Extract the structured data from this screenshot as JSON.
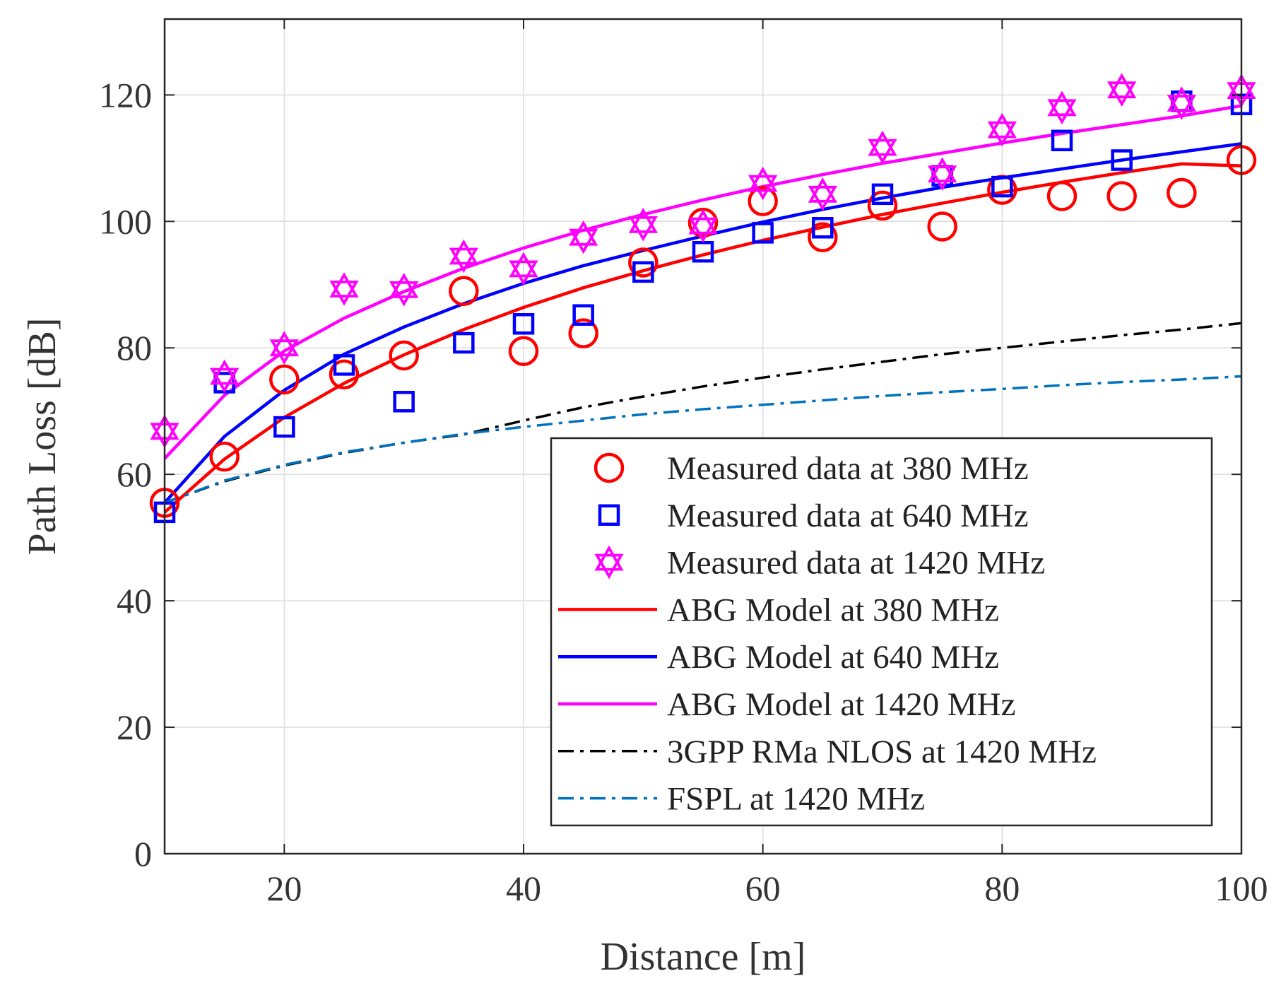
{
  "chart_data": {
    "type": "line",
    "title": "",
    "xlabel": "Distance [m]",
    "ylabel": "Path Loss [dB]",
    "xlim": [
      10,
      100
    ],
    "ylim": [
      0,
      132
    ],
    "xticks": [
      20,
      40,
      60,
      80,
      100
    ],
    "yticks": [
      0,
      20,
      40,
      60,
      80,
      100,
      120
    ],
    "grid": true,
    "legend_position": "bottom-right",
    "series": [
      {
        "name": "Measured data at 380 MHz",
        "kind": "marker",
        "marker": "circle",
        "color": "#ff0000",
        "x": [
          10,
          15,
          20,
          25,
          30,
          35,
          40,
          45,
          50,
          55,
          60,
          65,
          70,
          75,
          80,
          85,
          90,
          95,
          100
        ],
        "y": [
          55.5,
          62.8,
          75.0,
          75.8,
          78.8,
          89.0,
          79.5,
          82.3,
          93.5,
          99.8,
          103.2,
          97.5,
          102.5,
          99.2,
          105.0,
          104.0,
          104.0,
          104.5,
          109.7
        ]
      },
      {
        "name": "Measured data at 640 MHz",
        "kind": "marker",
        "marker": "square",
        "color": "#0000ff",
        "x": [
          10,
          15,
          20,
          25,
          30,
          35,
          40,
          45,
          50,
          55,
          60,
          65,
          70,
          75,
          80,
          85,
          90,
          95,
          100
        ],
        "y": [
          54.0,
          74.5,
          67.5,
          77.3,
          71.5,
          80.8,
          83.8,
          85.2,
          92.0,
          95.2,
          98.2,
          99.0,
          104.3,
          107.2,
          105.5,
          112.8,
          109.7,
          119.0,
          118.5
        ]
      },
      {
        "name": "Measured data at 1420 MHz",
        "kind": "marker",
        "marker": "hexagram",
        "color": "#ff00ff",
        "x": [
          10,
          15,
          20,
          25,
          30,
          35,
          40,
          45,
          50,
          55,
          60,
          65,
          70,
          75,
          80,
          85,
          90,
          95,
          100
        ],
        "y": [
          66.8,
          75.5,
          80.0,
          89.3,
          89.2,
          94.5,
          92.5,
          97.5,
          99.5,
          99.3,
          106.0,
          104.3,
          111.7,
          107.5,
          114.5,
          118.0,
          120.8,
          118.7,
          120.7
        ]
      },
      {
        "name": "ABG Model at 380 MHz",
        "kind": "line",
        "style": "solid",
        "color": "#ff0000",
        "x": [
          10,
          15,
          20,
          25,
          30,
          35,
          40,
          45,
          50,
          55,
          60,
          65,
          70,
          75,
          80,
          85,
          90,
          95,
          100
        ],
        "y": [
          54.0,
          62.4,
          69.0,
          74.4,
          78.9,
          82.9,
          86.4,
          89.5,
          92.2,
          94.7,
          97.0,
          99.1,
          101.1,
          102.9,
          104.6,
          106.2,
          107.7,
          109.1,
          108.8
        ]
      },
      {
        "name": "ABG Model at 640 MHz",
        "kind": "line",
        "style": "solid",
        "color": "#0000ff",
        "x": [
          10,
          15,
          20,
          25,
          30,
          35,
          40,
          45,
          50,
          55,
          60,
          65,
          70,
          75,
          80,
          85,
          90,
          95,
          100
        ],
        "y": [
          55.5,
          66.0,
          73.3,
          79.0,
          83.3,
          87.0,
          90.2,
          93.0,
          95.4,
          97.7,
          99.9,
          101.9,
          103.7,
          105.4,
          106.9,
          108.3,
          109.7,
          111.0,
          112.3
        ]
      },
      {
        "name": "ABG Model at 1420 MHz",
        "kind": "line",
        "style": "solid",
        "color": "#ff00ff",
        "x": [
          10,
          15,
          20,
          25,
          30,
          35,
          40,
          45,
          50,
          55,
          60,
          65,
          70,
          75,
          80,
          85,
          90,
          95,
          100
        ],
        "y": [
          62.5,
          72.5,
          79.5,
          84.7,
          88.9,
          92.6,
          95.8,
          98.6,
          101.1,
          103.4,
          105.5,
          107.4,
          109.2,
          110.8,
          112.4,
          113.9,
          115.3,
          116.7,
          118.3
        ]
      },
      {
        "name": "3GPP RMa NLOS at 1420 MHz",
        "kind": "line",
        "style": "dashdot",
        "color": "#000000",
        "x": [
          10,
          15,
          20,
          25,
          30,
          35,
          40,
          45,
          50,
          55,
          60,
          65,
          70,
          75,
          80,
          85,
          90,
          95,
          100
        ],
        "y": [
          55.5,
          58.9,
          61.4,
          63.4,
          65.0,
          66.3,
          68.5,
          70.6,
          72.3,
          73.9,
          75.3,
          76.6,
          77.8,
          79.0,
          80.0,
          81.0,
          82.0,
          82.9,
          83.9
        ]
      },
      {
        "name": "FSPL at 1420 MHz",
        "kind": "line",
        "style": "dashdot",
        "color": "#0072bd",
        "x": [
          10,
          15,
          20,
          25,
          30,
          35,
          40,
          45,
          50,
          55,
          60,
          65,
          70,
          75,
          80,
          85,
          90,
          95,
          100
        ],
        "y": [
          55.5,
          59.0,
          61.5,
          63.5,
          65.0,
          66.4,
          67.5,
          68.5,
          69.5,
          70.3,
          71.0,
          71.7,
          72.4,
          73.0,
          73.5,
          74.1,
          74.6,
          75.0,
          75.5
        ]
      }
    ]
  }
}
